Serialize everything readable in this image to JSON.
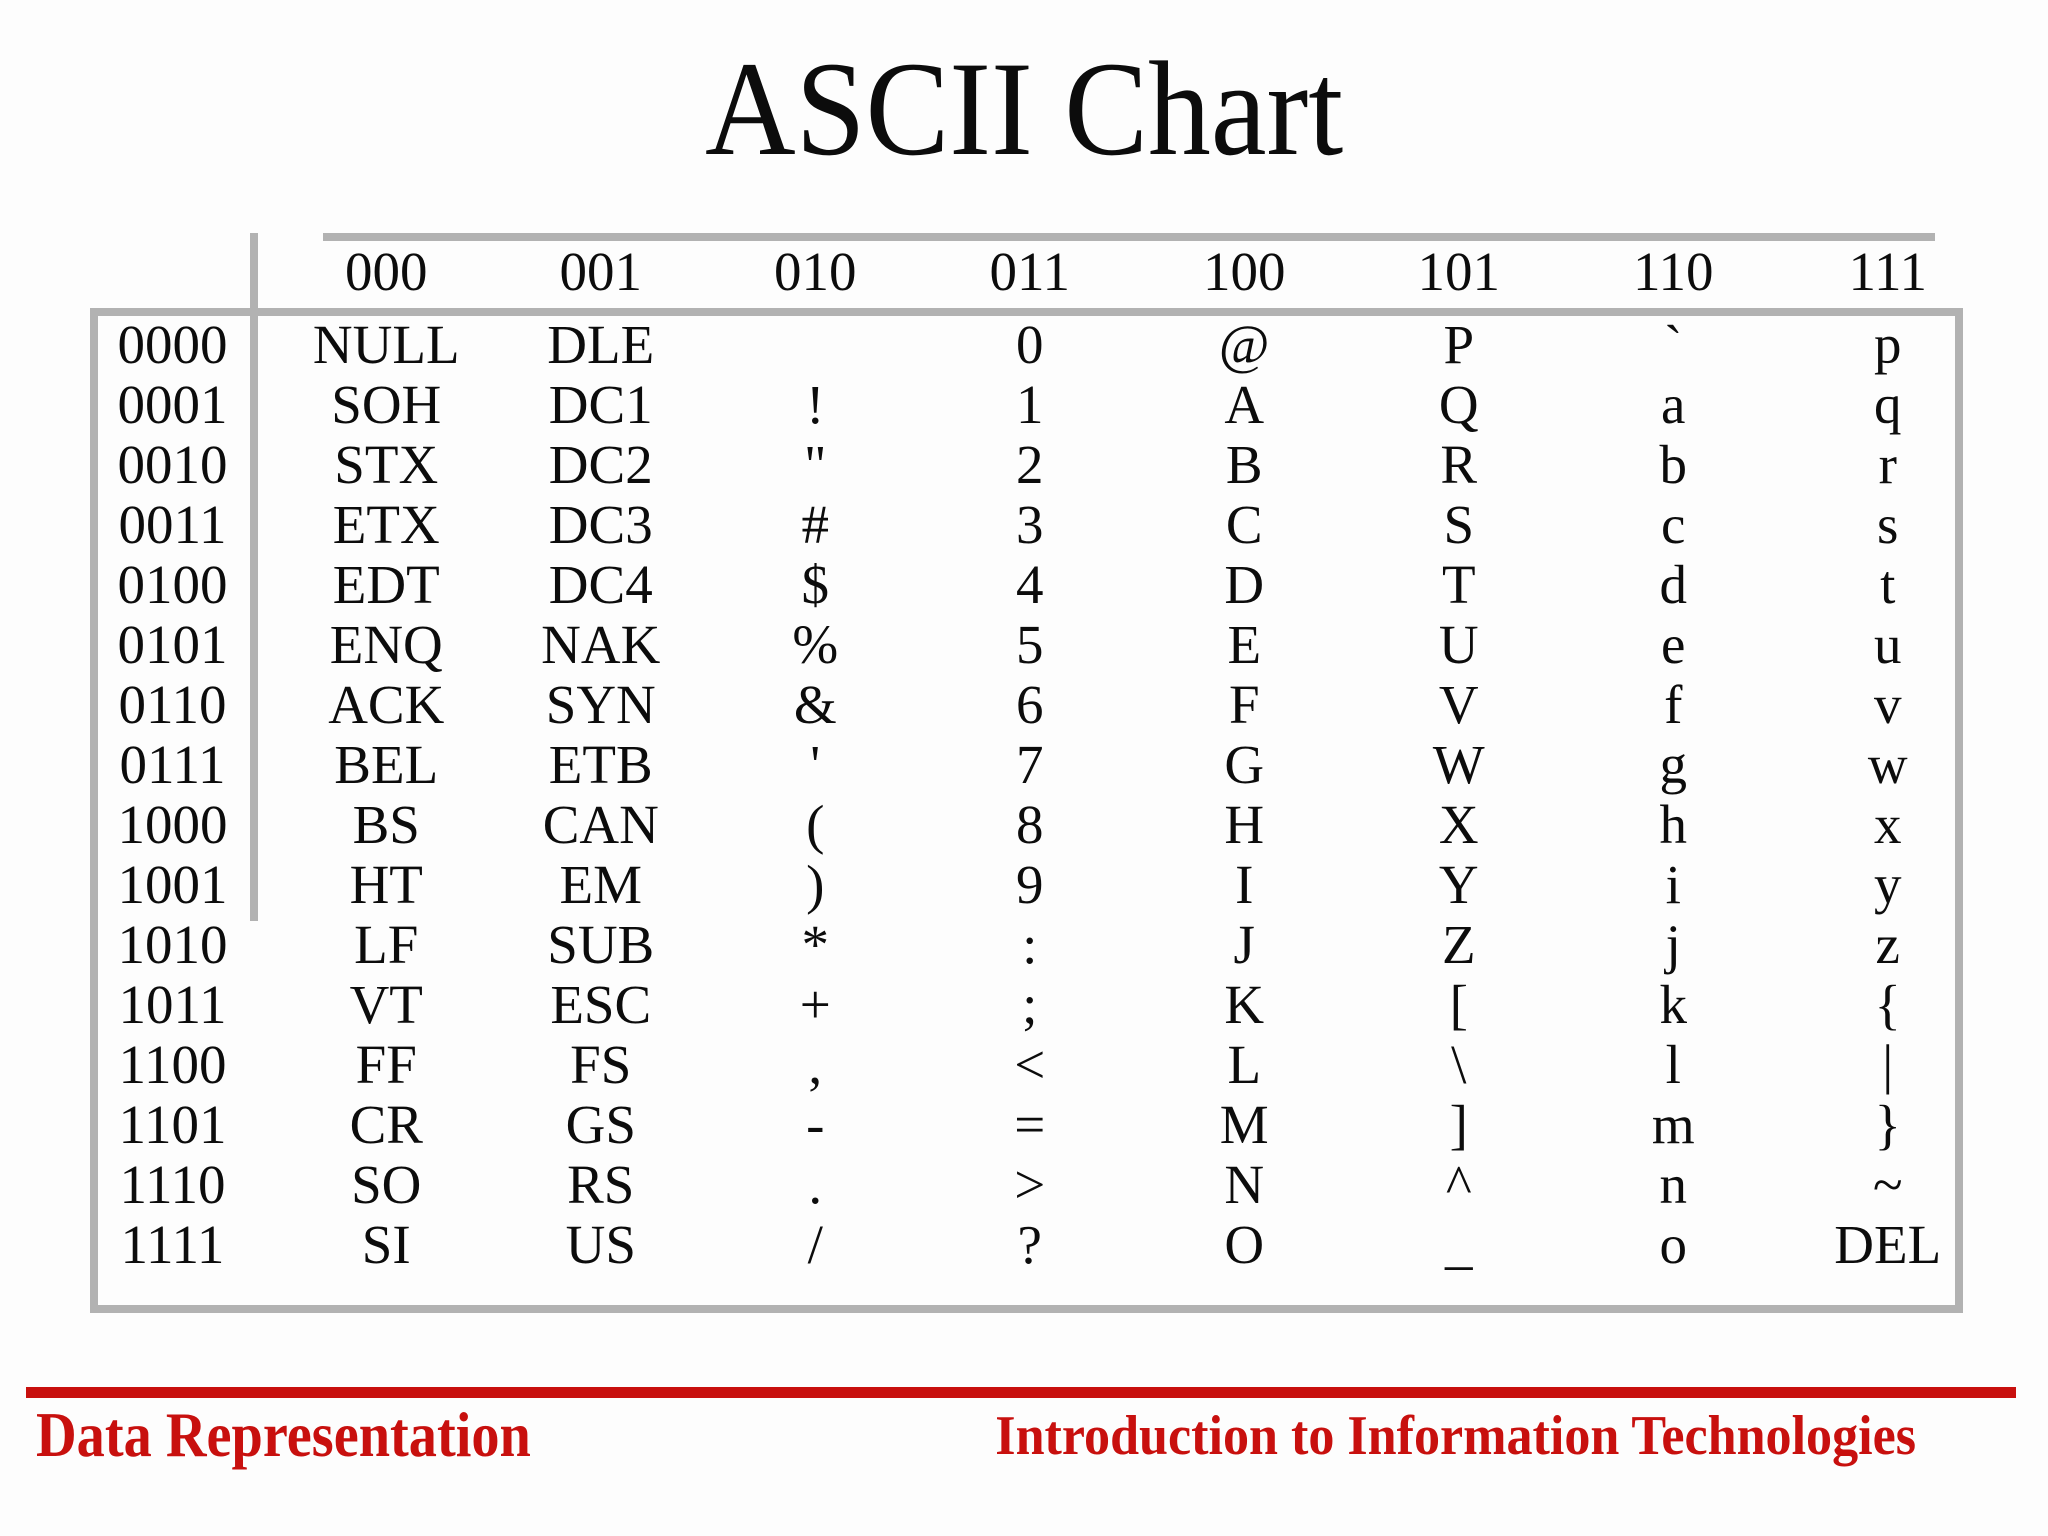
{
  "slide": {
    "title": "ASCII Chart",
    "footer_left": "Data Representation",
    "footer_right": "Introduction to Information Technologies"
  },
  "colors": {
    "accent_red": "#C8100E",
    "line_gray": "#B2B2B2",
    "text_black": "#0C0C0C",
    "background": "#FDFDFD"
  },
  "table": {
    "columns": [
      "000",
      "001",
      "010",
      "011",
      "100",
      "101",
      "110",
      "111"
    ],
    "rows": [
      {
        "bits": "0000",
        "cells": [
          "NULL",
          "DLE",
          "",
          "0",
          "@",
          "P",
          "`",
          "p"
        ]
      },
      {
        "bits": "0001",
        "cells": [
          "SOH",
          "DC1",
          "!",
          "1",
          "A",
          "Q",
          "a",
          "q"
        ]
      },
      {
        "bits": "0010",
        "cells": [
          "STX",
          "DC2",
          "\"",
          "2",
          "B",
          "R",
          "b",
          "r"
        ]
      },
      {
        "bits": "0011",
        "cells": [
          "ETX",
          "DC3",
          "#",
          "3",
          "C",
          "S",
          "c",
          "s"
        ]
      },
      {
        "bits": "0100",
        "cells": [
          "EDT",
          "DC4",
          "$",
          "4",
          "D",
          "T",
          "d",
          "t"
        ]
      },
      {
        "bits": "0101",
        "cells": [
          "ENQ",
          "NAK",
          "%",
          "5",
          "E",
          "U",
          "e",
          "u"
        ]
      },
      {
        "bits": "0110",
        "cells": [
          "ACK",
          "SYN",
          "&",
          "6",
          "F",
          "V",
          "f",
          "v"
        ]
      },
      {
        "bits": "0111",
        "cells": [
          "BEL",
          "ETB",
          "'",
          "7",
          "G",
          "W",
          "g",
          "w"
        ]
      },
      {
        "bits": "1000",
        "cells": [
          "BS",
          "CAN",
          "(",
          "8",
          "H",
          "X",
          "h",
          "x"
        ]
      },
      {
        "bits": "1001",
        "cells": [
          "HT",
          "EM",
          ")",
          "9",
          "I",
          "Y",
          "i",
          "y"
        ]
      },
      {
        "bits": "1010",
        "cells": [
          "LF",
          "SUB",
          "*",
          ":",
          "J",
          "Z",
          "j",
          "z"
        ]
      },
      {
        "bits": "1011",
        "cells": [
          "VT",
          "ESC",
          "+",
          ";",
          "K",
          "[",
          "k",
          "{"
        ]
      },
      {
        "bits": "1100",
        "cells": [
          "FF",
          "FS",
          ",",
          "<",
          "L",
          "\\",
          "l",
          "|"
        ]
      },
      {
        "bits": "1101",
        "cells": [
          "CR",
          "GS",
          "-",
          "=",
          "M",
          "]",
          "m",
          "}"
        ]
      },
      {
        "bits": "1110",
        "cells": [
          "SO",
          "RS",
          ".",
          ">",
          "N",
          "^",
          "n",
          "~"
        ]
      },
      {
        "bits": "1111",
        "cells": [
          "SI",
          "US",
          "/",
          "?",
          "O",
          "_",
          "o",
          "DEL"
        ]
      }
    ]
  }
}
